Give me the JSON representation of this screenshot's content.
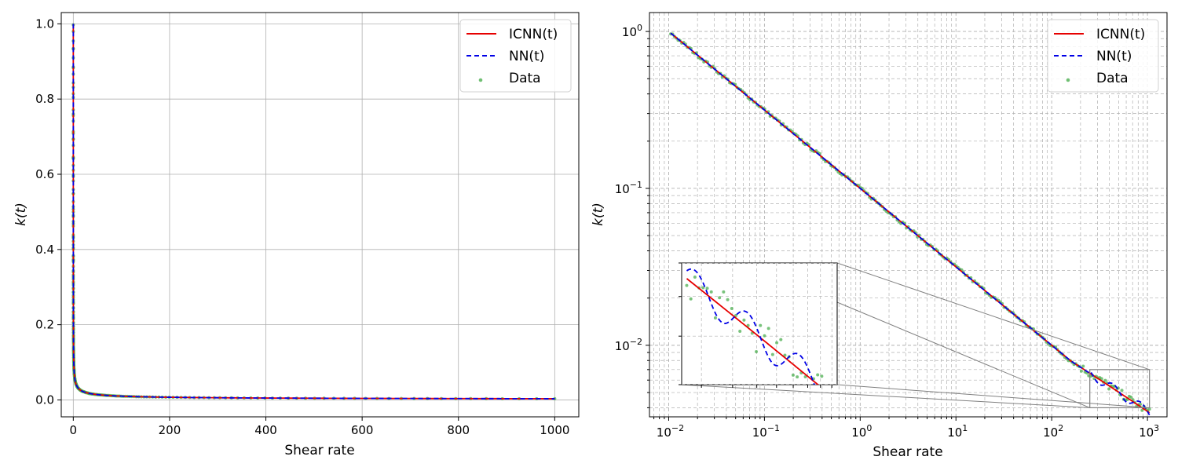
{
  "chart_data": [
    {
      "type": "line",
      "panel": "left",
      "xscale": "linear",
      "yscale": "linear",
      "xlabel": "Shear rate",
      "ylabel": "k(t)",
      "xlim": [
        -25,
        1050
      ],
      "ylim": [
        -0.045,
        1.03
      ],
      "xticks": [
        0,
        200,
        400,
        600,
        800,
        1000
      ],
      "xtick_labels": [
        "0",
        "200",
        "400",
        "600",
        "800",
        "1000"
      ],
      "yticks": [
        0.0,
        0.2,
        0.4,
        0.6,
        0.8,
        1.0
      ],
      "ytick_labels": [
        "0.0",
        "0.2",
        "0.4",
        "0.6",
        "0.8",
        "1.0"
      ],
      "grid": "major, solid",
      "legend_position": "top-right",
      "legend": [
        "ICNN(t)",
        "NN(t)",
        "Data"
      ],
      "series": [
        {
          "name": "ICNN(t)",
          "style": "solid",
          "color": "#e60000"
        },
        {
          "name": "NN(t)",
          "style": "dashed",
          "color": "#0000e6"
        },
        {
          "name": "Data",
          "style": "scatter",
          "color": "#4caf50"
        }
      ],
      "model": {
        "formula": "k(t) = 0.1 * t^-0.5 (approx.)",
        "x_range": [
          0.01,
          1000
        ]
      }
    },
    {
      "type": "line",
      "panel": "right",
      "xscale": "log",
      "yscale": "log",
      "xlabel": "Shear rate",
      "ylabel": "k(t)",
      "xlim": [
        0.0063,
        1600
      ],
      "ylim": [
        0.0035,
        1.32
      ],
      "xticks": [
        0.01,
        0.1,
        1,
        10,
        100,
        1000
      ],
      "xtick_labels": [
        {
          "base": "10",
          "exp": "−2"
        },
        {
          "base": "10",
          "exp": "−1"
        },
        {
          "base": "10",
          "exp": "0"
        },
        {
          "base": "10",
          "exp": "1"
        },
        {
          "base": "10",
          "exp": "2"
        },
        {
          "base": "10",
          "exp": "3"
        }
      ],
      "yticks": [
        0.01,
        0.1,
        1
      ],
      "ytick_labels": [
        {
          "base": "10",
          "exp": "−2"
        },
        {
          "base": "10",
          "exp": "−1"
        },
        {
          "base": "10",
          "exp": "0"
        }
      ],
      "grid": "major and minor, dashed",
      "legend_position": "top-right",
      "legend": [
        "ICNN(t)",
        "NN(t)",
        "Data"
      ],
      "inset": {
        "x_range": [
          250,
          1050
        ],
        "y_range": [
          0.004,
          0.007
        ]
      }
    }
  ],
  "colors": {
    "icnn": "#e60000",
    "nn": "#0000e6",
    "data": "#4caf50",
    "grid": "#b0b0b0",
    "inset_frame": "#808080"
  }
}
